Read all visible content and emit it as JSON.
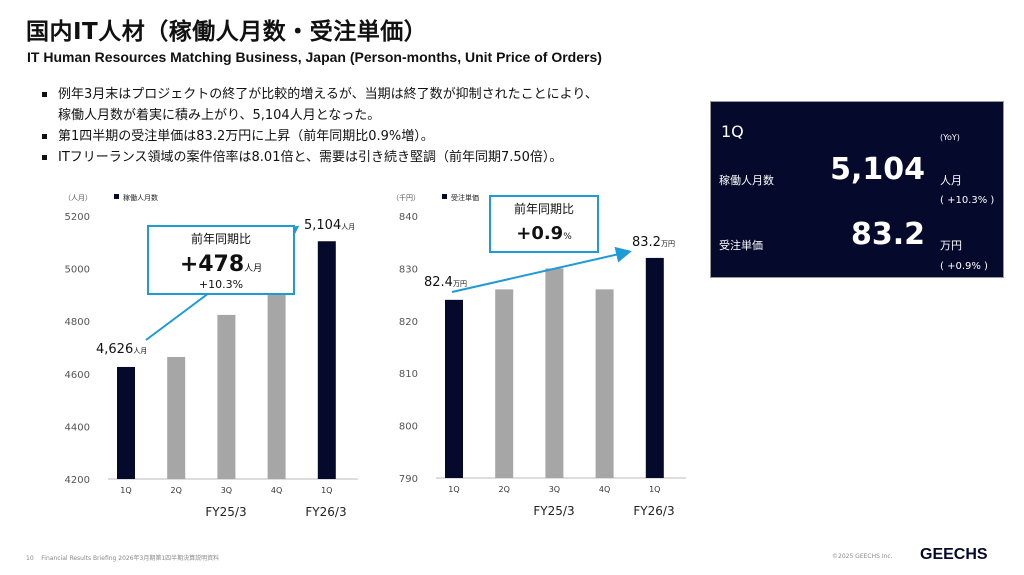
{
  "title": "国内IT人材（稼働人月数・受注単価）",
  "subtitle": "IT Human Resources Matching Business, Japan (Person-months, Unit Price of Orders)",
  "bullets": [
    "例年3月末はプロジェクトの終了が比較的増えるが、当期は終了数が抑制されたことにより、",
    "稼働人月数が着実に積み上がり、5,104人月となった。",
    "第1四半期の受注単価は83.2万円に上昇（前年同期比0.9%増）。",
    "ITフリーランス領域の案件倍率は8.01倍と、需要は引き続き堅調（前年同期7.50倍）。"
  ],
  "kpi": {
    "period": "1Q",
    "yoy": "(YoY)",
    "row1_label": "稼働人月数",
    "row1_value": "5,104",
    "row1_unit": "人月",
    "row1_yoy": "( +10.3% )",
    "row2_label": "受注単価",
    "row2_value": "83.2",
    "row2_unit": "万円",
    "row2_yoy": "( +0.9% )"
  },
  "chart_data": [
    {
      "type": "bar",
      "unit_label": "（人月）",
      "legend": "稼働人月数",
      "categories": [
        "1Q",
        "2Q",
        "3Q",
        "4Q",
        "1Q"
      ],
      "fiscal_labels": [
        "FY25/3",
        "FY26/3"
      ],
      "values": [
        4626,
        4664,
        4824,
        5010,
        5104
      ],
      "highlight": [
        true,
        false,
        false,
        false,
        true
      ],
      "ylim": [
        4200,
        5200
      ],
      "yticks": [
        4200,
        4400,
        4600,
        4800,
        5000,
        5200
      ],
      "label_first": "4,626",
      "label_last": "5,104",
      "label_unit": "人月",
      "callout": {
        "title": "前年同期比",
        "value": "+478",
        "unit": "人月",
        "pct": "+10.3%"
      }
    },
    {
      "type": "bar",
      "unit_label": "（千円）",
      "legend": "受注単価",
      "categories": [
        "1Q",
        "2Q",
        "3Q",
        "4Q",
        "1Q"
      ],
      "fiscal_labels": [
        "FY25/3",
        "FY26/3"
      ],
      "values": [
        824,
        826,
        830,
        826,
        832
      ],
      "highlight": [
        true,
        false,
        false,
        false,
        true
      ],
      "ylim": [
        790,
        840
      ],
      "yticks": [
        790,
        800,
        810,
        820,
        830,
        840
      ],
      "label_first": "82.4",
      "label_last": "83.2",
      "label_unit": "万円",
      "callout": {
        "title": "前年同期比",
        "value": "+0.9",
        "unit": "%",
        "pct": ""
      }
    }
  ],
  "colors": {
    "dark": "#050a2c",
    "gray": "#a6a6a6",
    "accent": "#1e9ad6"
  },
  "footer": {
    "page": "10",
    "doc": "Financial Results Briefing 2026年3月期第1四半期決算説明資料",
    "copyright": "©2025 GEECHS Inc.",
    "logo": "GEECHS"
  }
}
